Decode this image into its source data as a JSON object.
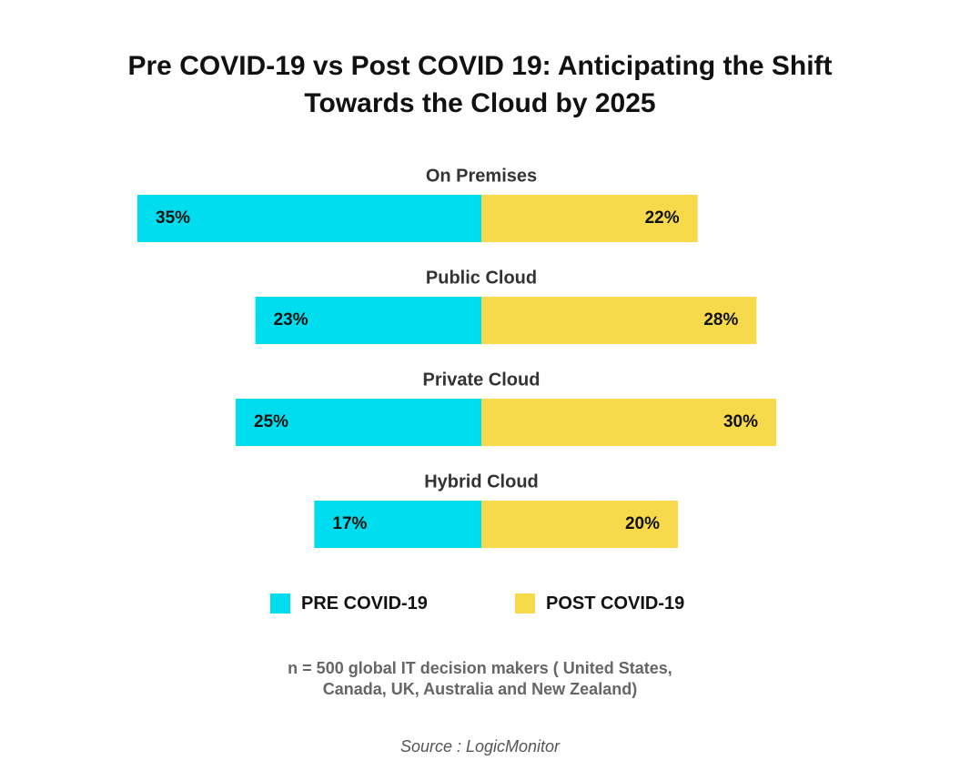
{
  "title_line1": "Pre COVID-19 vs Post COVID 19: Anticipating the Shift",
  "title_line2": "Towards the Cloud by 2025",
  "colors": {
    "pre": "#00DDEE",
    "post": "#F7D94C"
  },
  "legend": {
    "pre_label": "PRE COVID-19",
    "post_label": "POST COVID-19"
  },
  "note_line1": "n = 500 global IT decision makers ( United States,",
  "note_line2": "Canada, UK, Australia and New Zealand)",
  "source": "Source : LogicMonitor",
  "chart_data": {
    "type": "bar",
    "orientation": "diverging-horizontal",
    "categories": [
      "On Premises",
      "Public Cloud",
      "Private Cloud",
      "Hybrid Cloud"
    ],
    "series": [
      {
        "name": "PRE COVID-19",
        "values": [
          35,
          23,
          25,
          17
        ],
        "labels": [
          "35%",
          "23%",
          "25%",
          "17%"
        ]
      },
      {
        "name": "POST COVID-19",
        "values": [
          22,
          28,
          30,
          20
        ],
        "labels": [
          "22%",
          "28%",
          "30%",
          "20%"
        ]
      }
    ],
    "unit": "%",
    "grid": false,
    "legend_position": "bottom-center"
  }
}
